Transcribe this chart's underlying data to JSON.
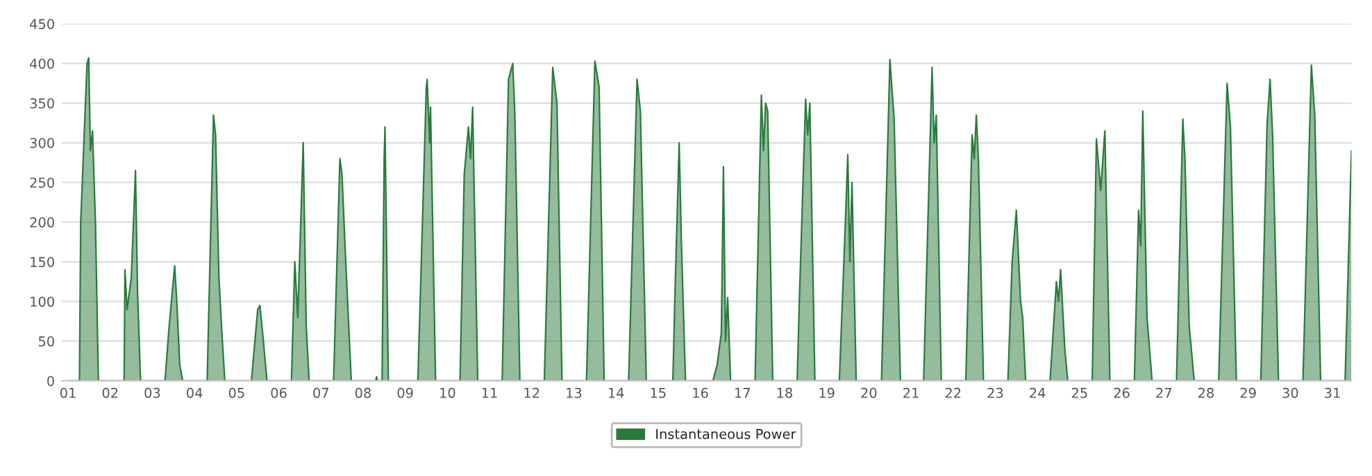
{
  "chart_data": {
    "type": "area",
    "xlim": [
      0.85,
      31.45
    ],
    "ylim": [
      0,
      450
    ],
    "yticks": [
      0,
      50,
      100,
      150,
      200,
      250,
      300,
      350,
      400,
      450
    ],
    "xticks": [
      {
        "value": 1,
        "label": "01"
      },
      {
        "value": 2,
        "label": "02"
      },
      {
        "value": 3,
        "label": "03"
      },
      {
        "value": 4,
        "label": "04"
      },
      {
        "value": 5,
        "label": "05"
      },
      {
        "value": 6,
        "label": "06"
      },
      {
        "value": 7,
        "label": "07"
      },
      {
        "value": 8,
        "label": "08"
      },
      {
        "value": 9,
        "label": "09"
      },
      {
        "value": 10,
        "label": "10"
      },
      {
        "value": 11,
        "label": "11"
      },
      {
        "value": 12,
        "label": "12"
      },
      {
        "value": 13,
        "label": "13"
      },
      {
        "value": 14,
        "label": "14"
      },
      {
        "value": 15,
        "label": "15"
      },
      {
        "value": 16,
        "label": "16"
      },
      {
        "value": 17,
        "label": "17"
      },
      {
        "value": 18,
        "label": "18"
      },
      {
        "value": 19,
        "label": "19"
      },
      {
        "value": 20,
        "label": "20"
      },
      {
        "value": 21,
        "label": "21"
      },
      {
        "value": 22,
        "label": "22"
      },
      {
        "value": 23,
        "label": "23"
      },
      {
        "value": 24,
        "label": "24"
      },
      {
        "value": 25,
        "label": "25"
      },
      {
        "value": 26,
        "label": "26"
      },
      {
        "value": 27,
        "label": "27"
      },
      {
        "value": 28,
        "label": "28"
      },
      {
        "value": 29,
        "label": "29"
      },
      {
        "value": 30,
        "label": "30"
      },
      {
        "value": 31,
        "label": "31"
      }
    ],
    "grid": "y",
    "legend": "bottom",
    "marker": "none",
    "line_style": "solid",
    "series": [
      {
        "name": "Instantaneous Power",
        "color": "#2a7a3c",
        "x": [
          1.0,
          1.27,
          1.3,
          1.45,
          1.49,
          1.53,
          1.58,
          1.65,
          1.72,
          2.33,
          2.35,
          2.4,
          2.5,
          2.6,
          2.65,
          2.72,
          3.3,
          3.4,
          3.53,
          3.58,
          3.65,
          3.72,
          4.3,
          4.45,
          4.5,
          4.58,
          4.65,
          4.72,
          5.35,
          5.5,
          5.55,
          5.6,
          5.72,
          6.3,
          6.38,
          6.45,
          6.58,
          6.65,
          6.72,
          7.3,
          7.45,
          7.5,
          7.58,
          7.72,
          8.3,
          8.32,
          8.34,
          8.45,
          8.5,
          8.52,
          8.6,
          9.3,
          9.5,
          9.52,
          9.58,
          9.6,
          9.72,
          10.3,
          10.4,
          10.5,
          10.55,
          10.6,
          10.72,
          11.3,
          11.45,
          11.55,
          11.6,
          11.72,
          12.3,
          12.5,
          12.6,
          12.72,
          13.3,
          13.5,
          13.6,
          13.72,
          14.3,
          14.5,
          14.58,
          14.72,
          15.35,
          15.4,
          15.5,
          15.55,
          15.65,
          16.3,
          16.4,
          16.5,
          16.55,
          16.6,
          16.65,
          16.72,
          17.3,
          17.45,
          17.5,
          17.55,
          17.6,
          17.72,
          18.3,
          18.35,
          18.5,
          18.55,
          18.6,
          18.72,
          19.3,
          19.45,
          19.5,
          19.55,
          19.6,
          19.7,
          20.3,
          20.5,
          20.6,
          20.75,
          21.3,
          21.5,
          21.55,
          21.6,
          21.72,
          22.3,
          22.45,
          22.5,
          22.55,
          22.6,
          22.72,
          23.3,
          23.4,
          23.5,
          23.6,
          23.65,
          23.72,
          24.3,
          24.45,
          24.5,
          24.55,
          24.65,
          24.72,
          25.3,
          25.4,
          25.5,
          25.6,
          25.72,
          26.3,
          26.4,
          26.45,
          26.5,
          26.6,
          26.72,
          27.3,
          27.45,
          27.5,
          27.6,
          27.72,
          28.3,
          28.5,
          28.58,
          28.72,
          29.3,
          29.45,
          29.52,
          29.58,
          29.72,
          30.3,
          30.5,
          30.58,
          30.72,
          31.3,
          31.45
        ],
        "values": [
          0,
          0,
          200,
          400,
          407,
          290,
          315,
          200,
          0,
          0,
          140,
          90,
          130,
          265,
          110,
          0,
          0,
          70,
          145,
          100,
          20,
          0,
          0,
          335,
          310,
          130,
          60,
          0,
          0,
          90,
          95,
          70,
          0,
          0,
          150,
          80,
          300,
          70,
          0,
          0,
          280,
          260,
          160,
          0,
          0,
          5,
          0,
          0,
          280,
          320,
          0,
          0,
          370,
          380,
          300,
          345,
          0,
          0,
          260,
          320,
          280,
          345,
          0,
          0,
          380,
          400,
          340,
          0,
          0,
          395,
          350,
          0,
          0,
          403,
          370,
          0,
          0,
          380,
          340,
          0,
          0,
          110,
          300,
          180,
          0,
          0,
          20,
          60,
          270,
          50,
          105,
          0,
          0,
          360,
          290,
          350,
          340,
          0,
          0,
          100,
          355,
          310,
          350,
          0,
          0,
          210,
          285,
          150,
          250,
          0,
          0,
          405,
          330,
          0,
          0,
          395,
          300,
          335,
          0,
          0,
          310,
          280,
          335,
          280,
          0,
          0,
          150,
          215,
          100,
          80,
          0,
          0,
          125,
          100,
          140,
          40,
          0,
          0,
          305,
          240,
          315,
          0,
          0,
          215,
          170,
          340,
          80,
          0,
          0,
          330,
          280,
          70,
          0,
          0,
          375,
          320,
          0,
          0,
          325,
          380,
          310,
          0,
          0,
          398,
          335,
          0,
          0,
          290
        ]
      }
    ]
  }
}
